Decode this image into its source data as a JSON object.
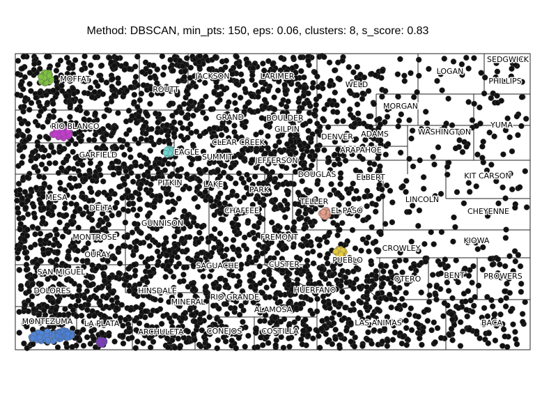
{
  "title": "Method: DBSCAN, min_pts: 150, eps: 0.06, clusters: 8, s_score: 0.83",
  "colors": {
    "noise": "#111111",
    "boundary": "#222222",
    "background": "#ffffff",
    "clusters": [
      "#7fc241",
      "#c43ccf",
      "#6fd6d0",
      "#e8a08c",
      "#e6c93b",
      "#4f86d9",
      "#7c3ec2",
      "#4a7fd4"
    ]
  },
  "counties": [
    "MOFFAT",
    "ROUTT",
    "JACKSON",
    "LARIMER",
    "WELD",
    "LOGAN",
    "SEDGWICK",
    "PHILLIPS",
    "MORGAN",
    "WASHINGTON",
    "YUMA",
    "RIO BLANCO",
    "GRAND",
    "BOULDER",
    "GILPIN",
    "DENVER",
    "ADAMS",
    "CLEAR CREEK",
    "ARAPAHOE",
    "GARFIELD",
    "EAGLE",
    "SUMMIT",
    "JEFFERSON",
    "DOUGLAS",
    "ELBERT",
    "KIT CARSON",
    "PITKIN",
    "LAKE",
    "PARK",
    "MESA",
    "TELLER",
    "EL PASO",
    "LINCOLN",
    "DELTA",
    "CHEYENNE",
    "GUNNISON",
    "CHAFFEE",
    "MONTROSE",
    "FREMONT",
    "KIOWA",
    "CROWLEY",
    "OURAY",
    "PUEBLO",
    "SAN MIGUEL",
    "SAGUACHE",
    "CUSTER",
    "OTERO",
    "BENT",
    "PROWERS",
    "DOLORES",
    "HINSDALE",
    "HUERFANO",
    "MINERAL",
    "RIO GRANDE",
    "ALAMOSA",
    "MONTEZUMA",
    "LA PLATA",
    "LAS ANIMAS",
    "BACA",
    "ARCHULETA",
    "CONEJOS",
    "COSTILLA"
  ]
}
